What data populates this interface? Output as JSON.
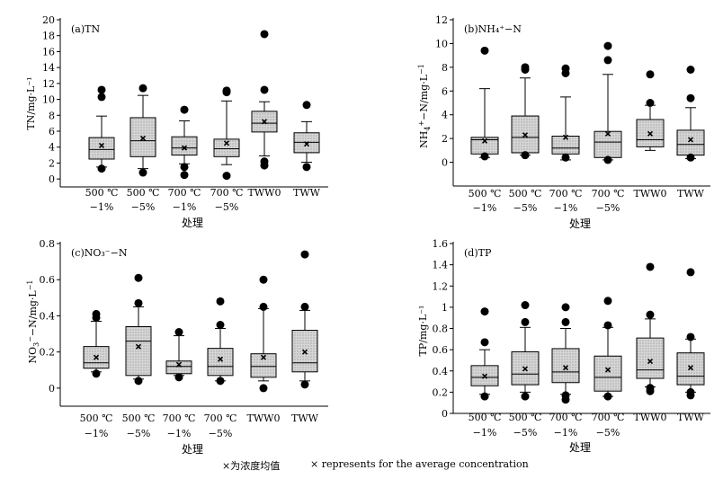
{
  "chart_data": [
    {
      "type": "box",
      "panel_label": "(a)TN",
      "ylabel": "TN/mg·L⁻¹",
      "xlabel": "处理",
      "ylim": [
        -1,
        20
      ],
      "yticks": [
        0,
        2,
        4,
        6,
        8,
        10,
        12,
        14,
        16,
        18,
        20
      ],
      "categories": [
        [
          "500 ℃",
          "−1%"
        ],
        [
          "500 ℃",
          "−5%"
        ],
        [
          "700 ℃",
          "−1%"
        ],
        [
          "700 ℃",
          "−5%"
        ],
        [
          "TWW0"
        ],
        [
          "TWW"
        ]
      ],
      "boxes": [
        {
          "low": 1.5,
          "q1": 2.5,
          "median": 3.7,
          "q3": 5.2,
          "high": 7.9,
          "mean": 4.2,
          "outliers": [
            1.3,
            10.3,
            11.2
          ]
        },
        {
          "low": 1.3,
          "q1": 2.8,
          "median": 4.8,
          "q3": 7.7,
          "high": 10.5,
          "mean": 5.1,
          "outliers": [
            0.8,
            11.4
          ]
        },
        {
          "low": 1.9,
          "q1": 3.0,
          "median": 3.9,
          "q3": 5.3,
          "high": 7.3,
          "mean": 3.9,
          "outliers": [
            0.5,
            1.5,
            8.7
          ]
        },
        {
          "low": 1.8,
          "q1": 2.8,
          "median": 3.8,
          "q3": 5.0,
          "high": 9.8,
          "mean": 4.5,
          "outliers": [
            0.4,
            10.9,
            11.1
          ]
        },
        {
          "low": 2.9,
          "q1": 5.9,
          "median": 7.0,
          "q3": 8.5,
          "high": 9.7,
          "mean": 7.2,
          "outliers": [
            1.7,
            2.2,
            11.2,
            18.2
          ]
        },
        {
          "low": 2.1,
          "q1": 3.3,
          "median": 4.6,
          "q3": 5.8,
          "high": 7.2,
          "mean": 4.4,
          "outliers": [
            1.5,
            9.3
          ]
        }
      ]
    },
    {
      "type": "box",
      "panel_label": "(b)NH₄⁺−N",
      "ylabel": "NH₄⁺−N/mg·L⁻¹",
      "xlabel": "处理",
      "ylim": [
        -2,
        12
      ],
      "yticks": [
        0,
        2,
        4,
        6,
        8,
        10,
        12
      ],
      "categories": [
        [
          "500 ℃",
          "−1%"
        ],
        [
          "500 ℃",
          "−5%"
        ],
        [
          "700 ℃",
          "−1%"
        ],
        [
          "700 ℃",
          "−5%"
        ],
        [
          "TWW0"
        ],
        [
          "TWW"
        ]
      ],
      "boxes": [
        {
          "low": 0.4,
          "q1": 0.7,
          "median": 1.9,
          "q3": 2.1,
          "high": 6.2,
          "mean": 1.8,
          "outliers": [
            0.5,
            9.4
          ]
        },
        {
          "low": 0.6,
          "q1": 0.8,
          "median": 2.1,
          "q3": 3.9,
          "high": 7.1,
          "mean": 2.3,
          "outliers": [
            0.6,
            7.8,
            8.0
          ]
        },
        {
          "low": 0.2,
          "q1": 0.7,
          "median": 1.2,
          "q3": 2.2,
          "high": 5.5,
          "mean": 2.1,
          "outliers": [
            0.4,
            7.5,
            7.9
          ]
        },
        {
          "low": 0.2,
          "q1": 0.4,
          "median": 1.7,
          "q3": 2.6,
          "high": 7.4,
          "mean": 2.4,
          "outliers": [
            0.2,
            8.6,
            9.8
          ]
        },
        {
          "low": 1.0,
          "q1": 1.3,
          "median": 1.9,
          "q3": 3.6,
          "high": 4.8,
          "mean": 2.4,
          "outliers": [
            5.0,
            7.4
          ]
        },
        {
          "low": 0.3,
          "q1": 0.6,
          "median": 1.5,
          "q3": 2.7,
          "high": 4.6,
          "mean": 1.9,
          "outliers": [
            0.4,
            5.4,
            7.8
          ]
        }
      ]
    },
    {
      "type": "box",
      "panel_label": "(c)NO₃⁻−N",
      "ylabel": "NO₃⁻−N/mg·L⁻¹",
      "xlabel": "处理",
      "ylim": [
        -0.1,
        0.8
      ],
      "yticks": [
        0,
        0.2,
        0.4,
        0.6,
        0.8
      ],
      "categories": [
        [
          "500 ℃",
          "−1%"
        ],
        [
          "500 ℃",
          "−5%"
        ],
        [
          "700 ℃",
          "−1%"
        ],
        [
          "700 ℃",
          "−5%"
        ],
        [
          "TWW0"
        ],
        [
          "TWW"
        ]
      ],
      "boxes": [
        {
          "low": 0.09,
          "q1": 0.11,
          "median": 0.14,
          "q3": 0.23,
          "high": 0.37,
          "mean": 0.17,
          "outliers": [
            0.08,
            0.39,
            0.41
          ]
        },
        {
          "low": 0.05,
          "q1": 0.07,
          "median": 0.26,
          "q3": 0.34,
          "high": 0.45,
          "mean": 0.23,
          "outliers": [
            0.04,
            0.47,
            0.61
          ]
        },
        {
          "low": 0.07,
          "q1": 0.08,
          "median": 0.12,
          "q3": 0.15,
          "high": 0.29,
          "mean": 0.13,
          "outliers": [
            0.06,
            0.31
          ]
        },
        {
          "low": 0.04,
          "q1": 0.07,
          "median": 0.12,
          "q3": 0.22,
          "high": 0.33,
          "mean": 0.16,
          "outliers": [
            0.04,
            0.35,
            0.48
          ]
        },
        {
          "low": 0.04,
          "q1": 0.06,
          "median": 0.12,
          "q3": 0.19,
          "high": 0.44,
          "mean": 0.17,
          "outliers": [
            0.0,
            0.45,
            0.6
          ]
        },
        {
          "low": 0.04,
          "q1": 0.09,
          "median": 0.14,
          "q3": 0.32,
          "high": 0.43,
          "mean": 0.2,
          "outliers": [
            0.02,
            0.45,
            0.74
          ]
        }
      ]
    },
    {
      "type": "box",
      "panel_label": "(d)TP",
      "ylabel": "TP/mg·L⁻¹",
      "xlabel": "处理",
      "ylim": [
        0,
        1.6
      ],
      "yticks": [
        0,
        0.2,
        0.4,
        0.6,
        0.8,
        1.0,
        1.2,
        1.4,
        1.6
      ],
      "categories": [
        [
          "500 ℃",
          "−1%"
        ],
        [
          "500 ℃",
          "−5%"
        ],
        [
          "700 ℃",
          "−1%"
        ],
        [
          "700 ℃",
          "−5%"
        ],
        [
          "TWW0"
        ],
        [
          "TWW"
        ]
      ],
      "boxes": [
        {
          "low": 0.18,
          "q1": 0.26,
          "median": 0.34,
          "q3": 0.45,
          "high": 0.6,
          "mean": 0.35,
          "outliers": [
            0.16,
            0.67,
            0.96
          ]
        },
        {
          "low": 0.2,
          "q1": 0.27,
          "median": 0.37,
          "q3": 0.58,
          "high": 0.81,
          "mean": 0.42,
          "outliers": [
            0.16,
            0.86,
            1.02
          ]
        },
        {
          "low": 0.18,
          "q1": 0.29,
          "median": 0.39,
          "q3": 0.61,
          "high": 0.8,
          "mean": 0.43,
          "outliers": [
            0.13,
            0.17,
            0.86,
            1.0
          ]
        },
        {
          "low": 0.16,
          "q1": 0.21,
          "median": 0.34,
          "q3": 0.54,
          "high": 0.81,
          "mean": 0.41,
          "outliers": [
            0.16,
            0.83,
            1.06
          ]
        },
        {
          "low": 0.25,
          "q1": 0.33,
          "median": 0.41,
          "q3": 0.71,
          "high": 0.89,
          "mean": 0.49,
          "outliers": [
            0.21,
            0.24,
            0.93,
            1.38
          ]
        },
        {
          "low": 0.2,
          "q1": 0.27,
          "median": 0.35,
          "q3": 0.57,
          "high": 0.7,
          "mean": 0.43,
          "outliers": [
            0.17,
            0.2,
            0.72,
            1.33
          ]
        }
      ]
    }
  ],
  "footnote": {
    "zh": "×为浓度均值",
    "en": "× represents for the average concentration"
  }
}
